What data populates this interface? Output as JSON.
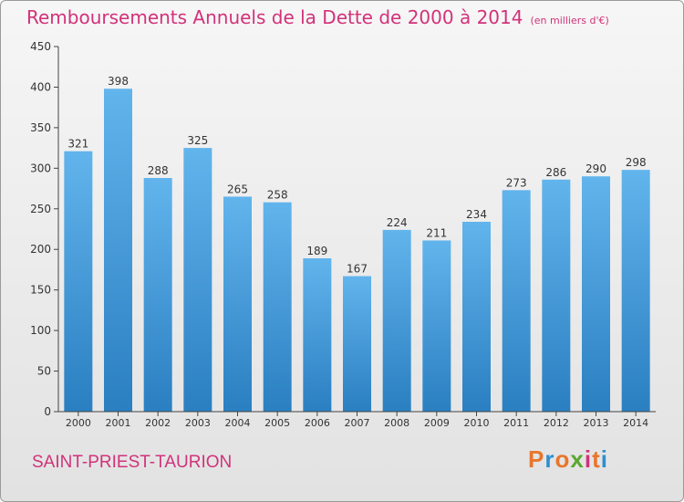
{
  "header": {
    "title": "Remboursements Annuels de la Dette de 2000 à 2014",
    "subtitle": "(en milliers d'€)"
  },
  "footer": {
    "commune": "SAINT-PRIEST-TAURION",
    "brand": "Proxiti",
    "brand_colors": [
      "#e8762c",
      "#2f8fd0",
      "#e8762c",
      "#5aa82e",
      "#d2327a",
      "#e8762c",
      "#2f8fd0"
    ]
  },
  "colors": {
    "bar_light": "#62b4ec",
    "bar_dark": "#2a7fc1",
    "accent": "#d2327a"
  },
  "chart_data": {
    "type": "bar",
    "title": "Remboursements Annuels de la Dette de 2000 à 2014",
    "subtitle": "(en milliers d'€)",
    "xlabel": "",
    "ylabel": "",
    "ylim": [
      0,
      450
    ],
    "ytick_step": 50,
    "grid": false,
    "categories": [
      "2000",
      "2001",
      "2002",
      "2003",
      "2004",
      "2005",
      "2006",
      "2007",
      "2008",
      "2009",
      "2010",
      "2011",
      "2012",
      "2013",
      "2014"
    ],
    "values": [
      321,
      398,
      288,
      325,
      265,
      258,
      189,
      167,
      224,
      211,
      234,
      273,
      286,
      290,
      298
    ]
  }
}
